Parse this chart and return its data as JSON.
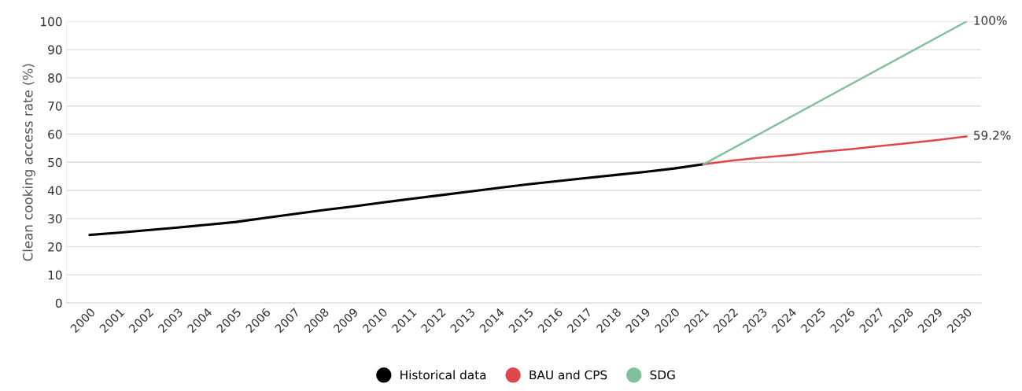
{
  "chart_data": {
    "type": "line",
    "ylabel": "Clean cooking access rate (%)",
    "categories": [
      "2000",
      "2001",
      "2002",
      "2003",
      "2004",
      "2005",
      "2006",
      "2007",
      "2008",
      "2009",
      "2010",
      "2011",
      "2012",
      "2013",
      "2014",
      "2015",
      "2016",
      "2017",
      "2018",
      "2019",
      "2020",
      "2021",
      "2022",
      "2023",
      "2024",
      "2025",
      "2026",
      "2027",
      "2028",
      "2029",
      "2030"
    ],
    "series": [
      {
        "name": "Historical data",
        "color": "#000000",
        "values": [
          24.2,
          25.0,
          25.9,
          26.8,
          27.8,
          28.8,
          30.2,
          31.6,
          33.0,
          34.3,
          35.7,
          37.0,
          38.3,
          39.6,
          40.9,
          42.2,
          43.3,
          44.4,
          45.5,
          46.6,
          47.8,
          49.3,
          null,
          null,
          null,
          null,
          null,
          null,
          null,
          null,
          null
        ]
      },
      {
        "name": "BAU and CPS",
        "color": "#e0474c",
        "values": [
          null,
          null,
          null,
          null,
          null,
          null,
          null,
          null,
          null,
          null,
          null,
          null,
          null,
          null,
          null,
          null,
          null,
          null,
          null,
          null,
          null,
          49.3,
          50.6,
          51.7,
          52.6,
          53.7,
          54.6,
          55.7,
          56.8,
          57.9,
          59.2
        ],
        "value_labels": [
          null,
          null,
          null,
          null,
          null,
          null,
          null,
          null,
          null,
          null,
          null,
          null,
          null,
          null,
          null,
          null,
          null,
          null,
          null,
          null,
          null,
          null,
          null,
          null,
          null,
          null,
          null,
          null,
          null,
          null,
          "59.2%"
        ]
      },
      {
        "name": "SDG",
        "color": "#82c09a",
        "values": [
          null,
          null,
          null,
          null,
          null,
          null,
          null,
          null,
          null,
          null,
          null,
          null,
          null,
          null,
          null,
          null,
          null,
          null,
          null,
          null,
          null,
          49.3,
          null,
          null,
          null,
          null,
          null,
          null,
          null,
          null,
          100
        ],
        "value_labels": [
          null,
          null,
          null,
          null,
          null,
          null,
          null,
          null,
          null,
          null,
          null,
          null,
          null,
          null,
          null,
          null,
          null,
          null,
          null,
          null,
          null,
          null,
          null,
          null,
          null,
          null,
          null,
          null,
          null,
          null,
          "100%"
        ]
      }
    ],
    "ylim": [
      0,
      100
    ],
    "yticks": [
      0,
      10,
      20,
      30,
      40,
      50,
      60,
      70,
      80,
      90,
      100
    ],
    "grid": "y",
    "legend": "bottom",
    "marker": "none",
    "line_style": "solid"
  }
}
